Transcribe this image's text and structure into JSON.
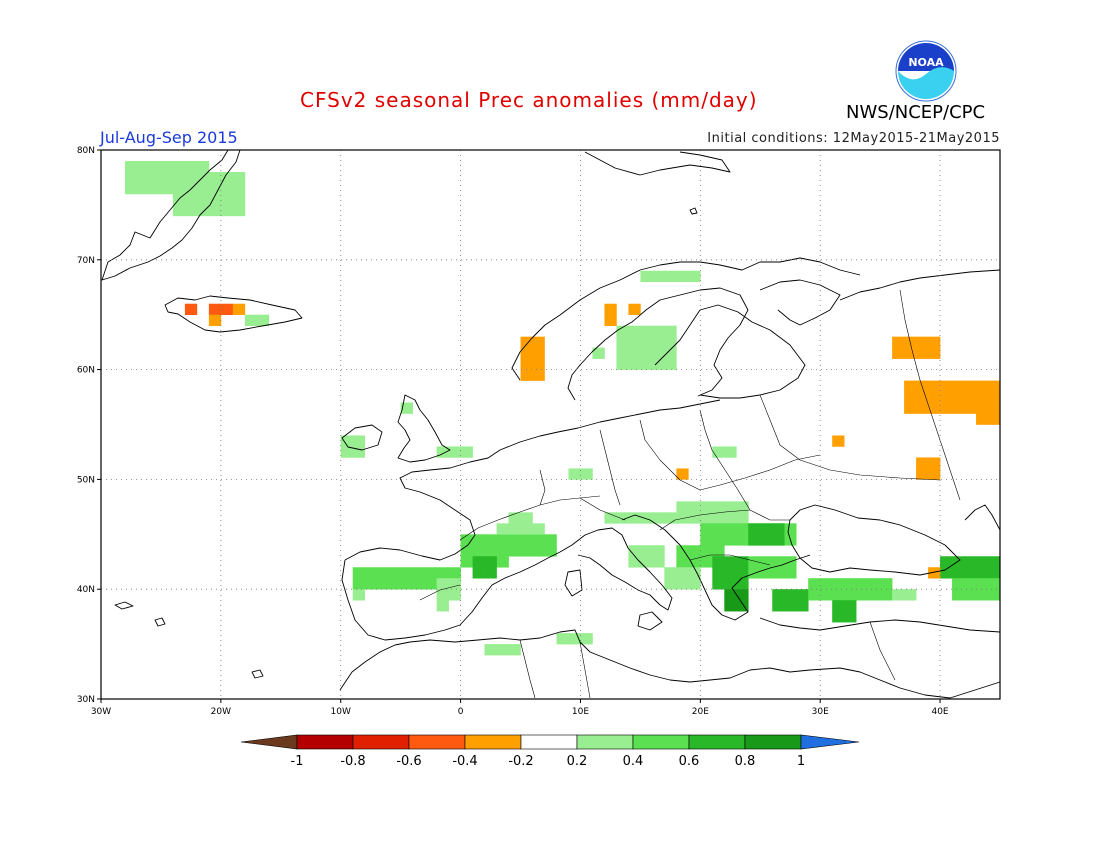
{
  "header": {
    "title": "CFSv2 seasonal Prec anomalies (mm/day)",
    "period": "Jul-Aug-Sep 2015",
    "initial_conditions": "Initial conditions: 12May2015-21May2015",
    "agency": "NWS/NCEP/CPC",
    "logo_text": "NOAA"
  },
  "map": {
    "projection": "lat-lon",
    "lon_range": [
      -30,
      45
    ],
    "lat_range": [
      30,
      80
    ],
    "lat_labels": [
      "30N",
      "40N",
      "50N",
      "60N",
      "70N",
      "80N"
    ],
    "lon_labels": [
      "30W",
      "20W",
      "10W",
      "0",
      "10E",
      "20E",
      "30E",
      "40E"
    ],
    "grid": "dotted"
  },
  "colorbar": {
    "labels": [
      "-1",
      "-0.8",
      "-0.6",
      "-0.4",
      "-0.2",
      "0.2",
      "0.4",
      "0.6",
      "0.8",
      "1"
    ],
    "colors": [
      "#6b3a1e",
      "#b40000",
      "#e02000",
      "#ff5a10",
      "#ffa000",
      "#ffffff",
      "#98ee90",
      "#5ae050",
      "#28b828",
      "#189a18",
      "#1f6fe0"
    ]
  },
  "anomaly_colors": {
    "light_green": "#98ee90",
    "green": "#5ae050",
    "mid_green": "#28b828",
    "dark_green": "#189a18",
    "orange": "#ffa000",
    "red_orange": "#ff5a10"
  }
}
